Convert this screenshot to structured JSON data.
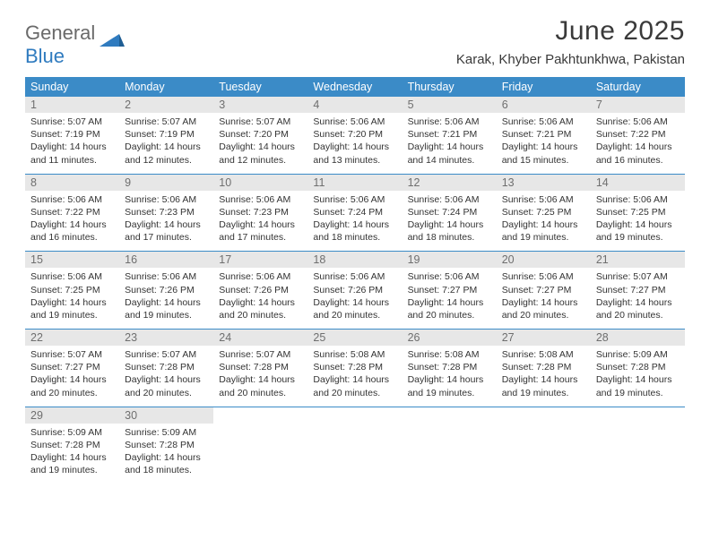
{
  "brand": {
    "part1": "General",
    "part2": "Blue"
  },
  "title": "June 2025",
  "location": "Karak, Khyber Pakhtunkhwa, Pakistan",
  "colors": {
    "header_bg": "#3b8bc7",
    "header_text": "#ffffff",
    "daynum_bg": "#e7e7e7",
    "daynum_text": "#6f6f6f",
    "body_text": "#333333",
    "row_border": "#3b8bc7",
    "logo_gray": "#6a6a6a",
    "logo_blue": "#2f7bbf"
  },
  "typography": {
    "title_fontsize": 30,
    "location_fontsize": 15,
    "header_fontsize": 12.5,
    "daynum_fontsize": 12.5,
    "body_fontsize": 10.5
  },
  "weekdays": [
    "Sunday",
    "Monday",
    "Tuesday",
    "Wednesday",
    "Thursday",
    "Friday",
    "Saturday"
  ],
  "weeks": [
    [
      {
        "n": "1",
        "sr": "5:07 AM",
        "ss": "7:19 PM",
        "dl": "14 hours and 11 minutes."
      },
      {
        "n": "2",
        "sr": "5:07 AM",
        "ss": "7:19 PM",
        "dl": "14 hours and 12 minutes."
      },
      {
        "n": "3",
        "sr": "5:07 AM",
        "ss": "7:20 PM",
        "dl": "14 hours and 12 minutes."
      },
      {
        "n": "4",
        "sr": "5:06 AM",
        "ss": "7:20 PM",
        "dl": "14 hours and 13 minutes."
      },
      {
        "n": "5",
        "sr": "5:06 AM",
        "ss": "7:21 PM",
        "dl": "14 hours and 14 minutes."
      },
      {
        "n": "6",
        "sr": "5:06 AM",
        "ss": "7:21 PM",
        "dl": "14 hours and 15 minutes."
      },
      {
        "n": "7",
        "sr": "5:06 AM",
        "ss": "7:22 PM",
        "dl": "14 hours and 16 minutes."
      }
    ],
    [
      {
        "n": "8",
        "sr": "5:06 AM",
        "ss": "7:22 PM",
        "dl": "14 hours and 16 minutes."
      },
      {
        "n": "9",
        "sr": "5:06 AM",
        "ss": "7:23 PM",
        "dl": "14 hours and 17 minutes."
      },
      {
        "n": "10",
        "sr": "5:06 AM",
        "ss": "7:23 PM",
        "dl": "14 hours and 17 minutes."
      },
      {
        "n": "11",
        "sr": "5:06 AM",
        "ss": "7:24 PM",
        "dl": "14 hours and 18 minutes."
      },
      {
        "n": "12",
        "sr": "5:06 AM",
        "ss": "7:24 PM",
        "dl": "14 hours and 18 minutes."
      },
      {
        "n": "13",
        "sr": "5:06 AM",
        "ss": "7:25 PM",
        "dl": "14 hours and 19 minutes."
      },
      {
        "n": "14",
        "sr": "5:06 AM",
        "ss": "7:25 PM",
        "dl": "14 hours and 19 minutes."
      }
    ],
    [
      {
        "n": "15",
        "sr": "5:06 AM",
        "ss": "7:25 PM",
        "dl": "14 hours and 19 minutes."
      },
      {
        "n": "16",
        "sr": "5:06 AM",
        "ss": "7:26 PM",
        "dl": "14 hours and 19 minutes."
      },
      {
        "n": "17",
        "sr": "5:06 AM",
        "ss": "7:26 PM",
        "dl": "14 hours and 20 minutes."
      },
      {
        "n": "18",
        "sr": "5:06 AM",
        "ss": "7:26 PM",
        "dl": "14 hours and 20 minutes."
      },
      {
        "n": "19",
        "sr": "5:06 AM",
        "ss": "7:27 PM",
        "dl": "14 hours and 20 minutes."
      },
      {
        "n": "20",
        "sr": "5:06 AM",
        "ss": "7:27 PM",
        "dl": "14 hours and 20 minutes."
      },
      {
        "n": "21",
        "sr": "5:07 AM",
        "ss": "7:27 PM",
        "dl": "14 hours and 20 minutes."
      }
    ],
    [
      {
        "n": "22",
        "sr": "5:07 AM",
        "ss": "7:27 PM",
        "dl": "14 hours and 20 minutes."
      },
      {
        "n": "23",
        "sr": "5:07 AM",
        "ss": "7:28 PM",
        "dl": "14 hours and 20 minutes."
      },
      {
        "n": "24",
        "sr": "5:07 AM",
        "ss": "7:28 PM",
        "dl": "14 hours and 20 minutes."
      },
      {
        "n": "25",
        "sr": "5:08 AM",
        "ss": "7:28 PM",
        "dl": "14 hours and 20 minutes."
      },
      {
        "n": "26",
        "sr": "5:08 AM",
        "ss": "7:28 PM",
        "dl": "14 hours and 19 minutes."
      },
      {
        "n": "27",
        "sr": "5:08 AM",
        "ss": "7:28 PM",
        "dl": "14 hours and 19 minutes."
      },
      {
        "n": "28",
        "sr": "5:09 AM",
        "ss": "7:28 PM",
        "dl": "14 hours and 19 minutes."
      }
    ],
    [
      {
        "n": "29",
        "sr": "5:09 AM",
        "ss": "7:28 PM",
        "dl": "14 hours and 19 minutes."
      },
      {
        "n": "30",
        "sr": "5:09 AM",
        "ss": "7:28 PM",
        "dl": "14 hours and 18 minutes."
      },
      null,
      null,
      null,
      null,
      null
    ]
  ],
  "labels": {
    "sunrise": "Sunrise:",
    "sunset": "Sunset:",
    "daylight": "Daylight:"
  }
}
